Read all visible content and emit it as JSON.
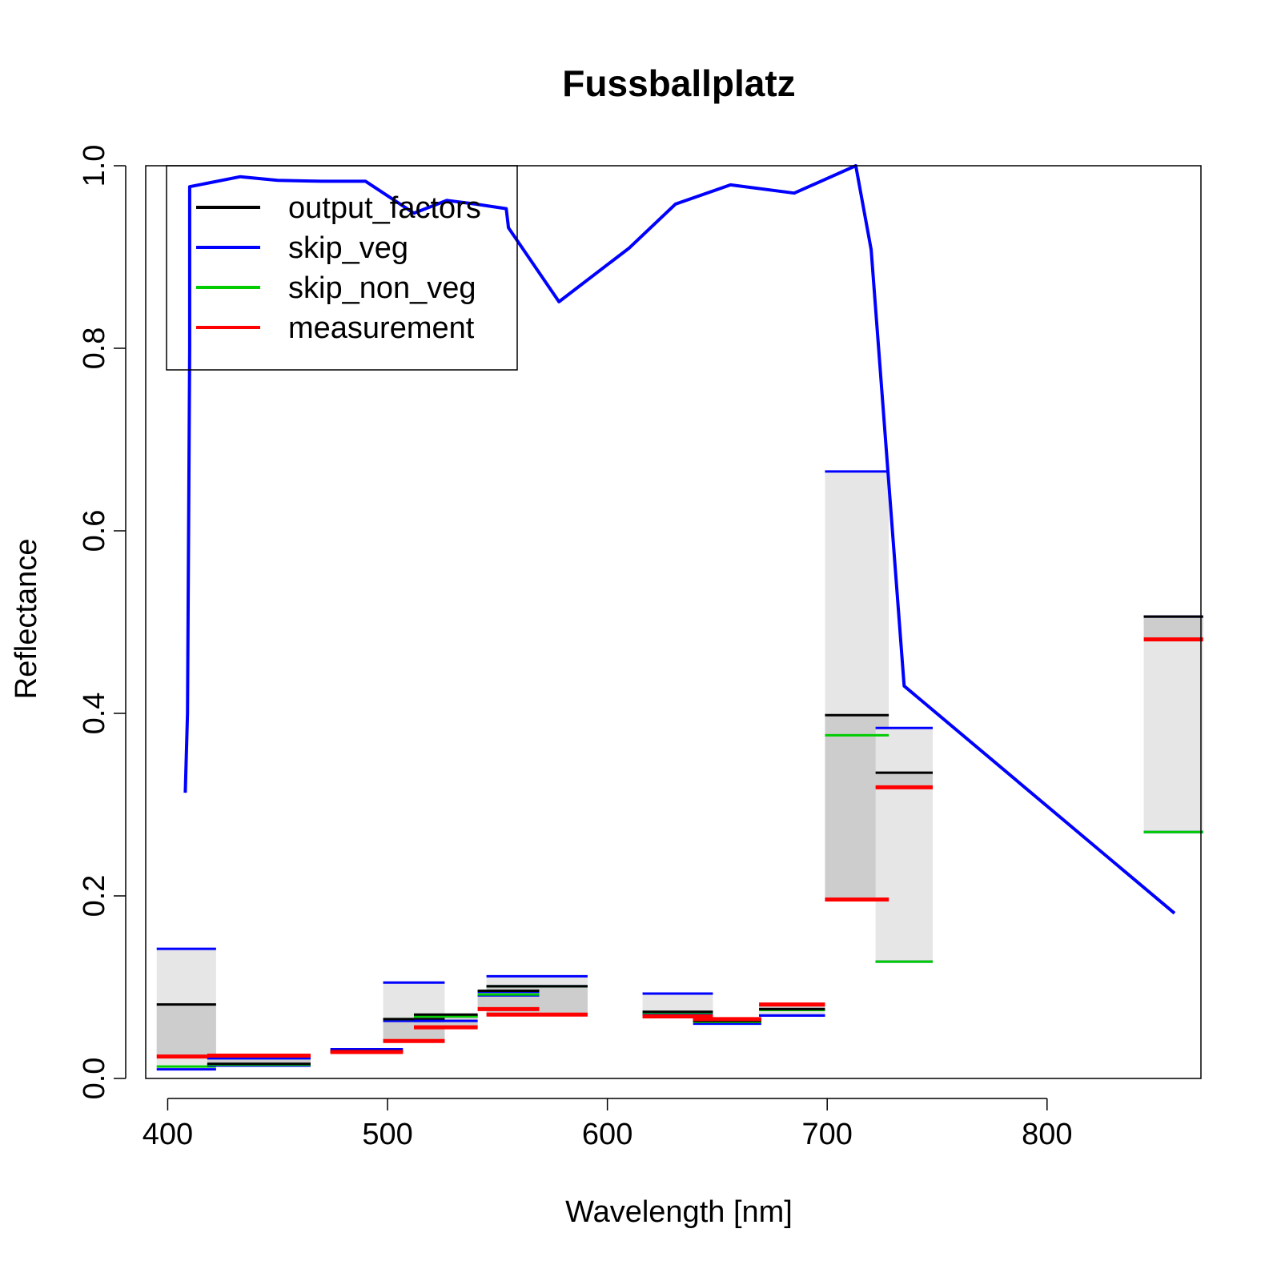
{
  "chart_data": {
    "type": "line",
    "title": "Fussballplatz",
    "xlabel": "Wavelength [nm]",
    "ylabel": "Reflectance",
    "xlim": [
      390,
      870
    ],
    "ylim": [
      0,
      1.0
    ],
    "x_ticks": [
      400,
      500,
      600,
      700,
      800
    ],
    "x_tick_labels": [
      "400",
      "500",
      "600",
      "700",
      "800"
    ],
    "y_ticks": [
      0,
      0.2,
      0.4,
      0.6,
      0.8,
      1.0
    ],
    "y_tick_labels": [
      "0.0",
      "0.2",
      "0.4",
      "0.6",
      "0.8",
      "1.0"
    ],
    "grid": false,
    "legend": {
      "placement": "top-left",
      "entries": [
        {
          "label": "output_factors",
          "color": "#000000"
        },
        {
          "label": "skip_veg",
          "color": "#0000ff"
        },
        {
          "label": "skip_non_veg",
          "color": "#00cc00"
        },
        {
          "label": "measurement",
          "color": "#ff0000"
        }
      ]
    },
    "colors": {
      "output_factors": "#000000",
      "skip_veg": "#0000ff",
      "skip_non_veg": "#00cc00",
      "measurement": "#ff0000",
      "range_light": "#e6e6e6",
      "range_mid": "#cdcdcd",
      "range_dark": "#b3b3b3"
    },
    "line_series": {
      "name": "skip_veg",
      "x": [
        408,
        409,
        410,
        410,
        433,
        450,
        470,
        490,
        512,
        527,
        540,
        554,
        555,
        578,
        610,
        631,
        656,
        685,
        713,
        720,
        735,
        858
      ],
      "y": [
        0.313,
        0.4,
        0.8,
        0.977,
        0.988,
        0.984,
        0.983,
        0.983,
        0.948,
        0.962,
        0.958,
        0.953,
        0.932,
        0.851,
        0.91,
        0.958,
        0.979,
        0.97,
        1.0,
        0.908,
        0.43,
        0.181
      ]
    },
    "bands": [
      {
        "x0": 395,
        "x1": 422,
        "output_factors": 0.081,
        "skip_veg_hi": 0.142,
        "skip_veg_lo": 0.01,
        "skip_non_veg": 0.013,
        "measurement": 0.024
      },
      {
        "x0": 418,
        "x1": 465,
        "output_factors": 0.016,
        "skip_veg_hi": 0.022,
        "skip_veg_lo": 0.014,
        "skip_non_veg": 0.015,
        "measurement": 0.025
      },
      {
        "x0": 474,
        "x1": 507,
        "output_factors": 0.03,
        "skip_veg_hi": 0.032,
        "skip_veg_lo": 0.03,
        "skip_non_veg": 0.029,
        "measurement": 0.029
      },
      {
        "x0": 498,
        "x1": 526,
        "output_factors": 0.065,
        "skip_veg_hi": 0.105,
        "skip_veg_lo": 0.063,
        "skip_non_veg": 0.065,
        "measurement": 0.041
      },
      {
        "x0": 512,
        "x1": 541,
        "output_factors": 0.07,
        "skip_veg_hi": 0.068,
        "skip_veg_lo": 0.063,
        "skip_non_veg": 0.068,
        "measurement": 0.056
      },
      {
        "x0": 541,
        "x1": 569,
        "output_factors": 0.096,
        "skip_veg_hi": 0.095,
        "skip_veg_lo": 0.091,
        "skip_non_veg": 0.092,
        "measurement": 0.076
      },
      {
        "x0": 545,
        "x1": 591,
        "output_factors": 0.101,
        "skip_veg_hi": 0.112,
        "skip_veg_lo": 0.101,
        "skip_non_veg": 0.101,
        "measurement": 0.07
      },
      {
        "x0": 616,
        "x1": 648,
        "output_factors": 0.073,
        "skip_veg_hi": 0.093,
        "skip_veg_lo": 0.07,
        "skip_non_veg": 0.072,
        "measurement": 0.068
      },
      {
        "x0": 639,
        "x1": 670,
        "output_factors": 0.063,
        "skip_veg_hi": 0.065,
        "skip_veg_lo": 0.06,
        "skip_non_veg": 0.062,
        "measurement": 0.065
      },
      {
        "x0": 669,
        "x1": 699,
        "output_factors": 0.076,
        "skip_veg_hi": 0.069,
        "skip_veg_lo": 0.069,
        "skip_non_veg": 0.075,
        "measurement": 0.081
      },
      {
        "x0": 699,
        "x1": 728,
        "output_factors": 0.398,
        "skip_veg_hi": 0.665,
        "skip_veg_lo": 0.196,
        "skip_non_veg": 0.376,
        "measurement": 0.196
      },
      {
        "x0": 722,
        "x1": 748,
        "output_factors": 0.335,
        "skip_veg_hi": 0.384,
        "skip_veg_lo": 0.128,
        "skip_non_veg": 0.128,
        "measurement": 0.319
      },
      {
        "x0": 844,
        "x1": 871,
        "output_factors": 0.506,
        "skip_veg_hi": 0.506,
        "skip_veg_lo": 0.27,
        "skip_non_veg": 0.27,
        "measurement": 0.481
      }
    ]
  }
}
